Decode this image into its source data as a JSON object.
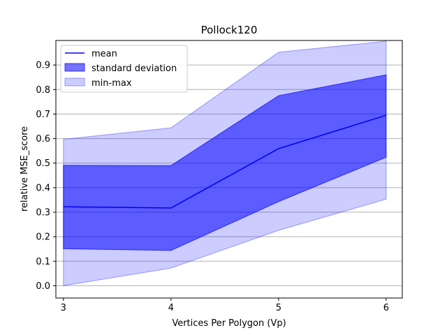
{
  "chart_data": {
    "type": "area",
    "title": "Pollock120",
    "xlabel": "Vertices Per Polygon (Vp)",
    "ylabel": "relative MSE_score",
    "x": [
      3,
      4,
      5,
      6
    ],
    "xticks": [
      "3",
      "4",
      "5",
      "6"
    ],
    "yticks": [
      "0.0",
      "0.1",
      "0.2",
      "0.3",
      "0.4",
      "0.5",
      "0.6",
      "0.7",
      "0.8",
      "0.9"
    ],
    "xlim": [
      2.93,
      6.15
    ],
    "ylim": [
      -0.05,
      1.0
    ],
    "grid": "horizontal",
    "legend_position": "upper-left",
    "series": [
      {
        "name": "mean",
        "kind": "line",
        "color": "#0000ee",
        "values": [
          0.322,
          0.317,
          0.559,
          0.695
        ]
      },
      {
        "name": "standard deviation",
        "kind": "band",
        "color": "#0000ff",
        "opacity": 0.55,
        "lower": [
          0.151,
          0.144,
          0.343,
          0.524
        ],
        "upper": [
          0.491,
          0.49,
          0.775,
          0.86
        ]
      },
      {
        "name": "min-max",
        "kind": "band",
        "color": "#0000ff",
        "opacity": 0.2,
        "lower": [
          0.0,
          0.072,
          0.226,
          0.353
        ],
        "upper": [
          0.597,
          0.644,
          0.952,
          0.997
        ]
      }
    ]
  }
}
